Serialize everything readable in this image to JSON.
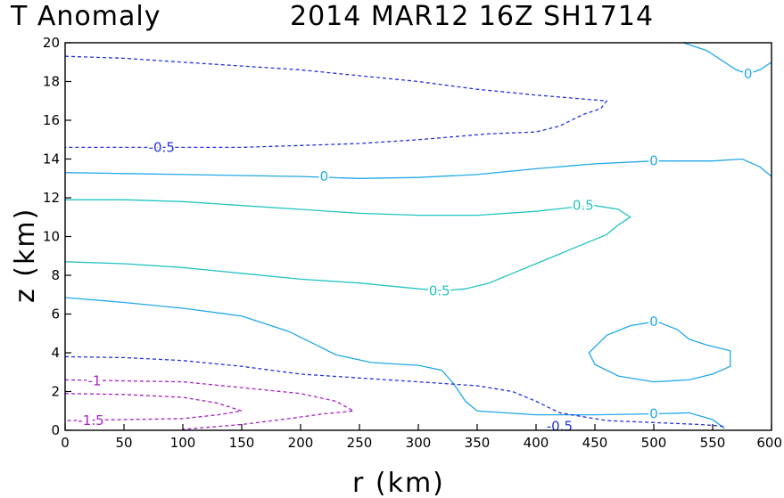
{
  "chart_data": {
    "type": "contour",
    "title_left": "T Anomaly",
    "title_right": "2014 MAR12 16Z   SH1714",
    "xlabel": "r (km)",
    "ylabel": "z (km)",
    "xlim": [
      0,
      600
    ],
    "ylim": [
      0,
      20
    ],
    "xticks": [
      "0",
      "50",
      "100",
      "150",
      "200",
      "250",
      "300",
      "350",
      "400",
      "450",
      "500",
      "550",
      "600"
    ],
    "yticks": [
      "0",
      "2",
      "4",
      "6",
      "8",
      "10",
      "12",
      "14",
      "16",
      "18",
      "20"
    ],
    "colors": {
      "neg_half": "#2233dd",
      "zero": "#22a8e8",
      "pos_half": "#22c4c0",
      "neg_strong": "#a822c8"
    },
    "contours": [
      {
        "level": -0.5,
        "style": "dashed",
        "color": "neg_half",
        "points": [
          [
            0,
            19.3
          ],
          [
            50,
            19.2
          ],
          [
            100,
            19.0
          ],
          [
            150,
            18.8
          ],
          [
            200,
            18.6
          ],
          [
            250,
            18.3
          ],
          [
            300,
            18.0
          ],
          [
            350,
            17.6
          ],
          [
            400,
            17.3
          ],
          [
            440,
            17.1
          ],
          [
            460,
            17.0
          ],
          [
            455,
            16.6
          ],
          [
            440,
            16.3
          ],
          [
            420,
            15.7
          ],
          [
            400,
            15.4
          ],
          [
            360,
            15.3
          ],
          [
            300,
            15.0
          ],
          [
            250,
            14.8
          ],
          [
            200,
            14.7
          ],
          [
            150,
            14.6
          ],
          [
            100,
            14.6
          ],
          [
            50,
            14.6
          ],
          [
            0,
            14.6
          ]
        ]
      },
      {
        "level": 0,
        "style": "solid",
        "color": "zero",
        "points": [
          [
            0,
            13.3
          ],
          [
            50,
            13.25
          ],
          [
            100,
            13.2
          ],
          [
            150,
            13.15
          ],
          [
            200,
            13.1
          ],
          [
            250,
            13.0
          ],
          [
            300,
            13.05
          ],
          [
            350,
            13.2
          ],
          [
            400,
            13.5
          ],
          [
            450,
            13.75
          ],
          [
            500,
            13.9
          ],
          [
            550,
            13.9
          ],
          [
            575,
            14.0
          ],
          [
            590,
            13.6
          ],
          [
            600,
            13.1
          ]
        ]
      },
      {
        "level": 0,
        "style": "solid",
        "color": "zero",
        "points": [
          [
            525,
            20.0
          ],
          [
            545,
            19.6
          ],
          [
            570,
            18.6
          ],
          [
            580,
            18.4
          ],
          [
            590,
            18.6
          ],
          [
            600,
            19.0
          ]
        ]
      },
      {
        "level": 0.5,
        "style": "solid",
        "color": "pos_half",
        "points": [
          [
            0,
            11.9
          ],
          [
            50,
            11.9
          ],
          [
            100,
            11.8
          ],
          [
            150,
            11.6
          ],
          [
            200,
            11.4
          ],
          [
            250,
            11.2
          ],
          [
            300,
            11.1
          ],
          [
            350,
            11.1
          ],
          [
            400,
            11.3
          ],
          [
            430,
            11.5
          ],
          [
            450,
            11.6
          ],
          [
            470,
            11.4
          ],
          [
            480,
            11.0
          ],
          [
            470,
            10.6
          ],
          [
            460,
            10.1
          ],
          [
            440,
            9.6
          ],
          [
            420,
            9.1
          ],
          [
            400,
            8.6
          ],
          [
            380,
            8.1
          ],
          [
            360,
            7.6
          ],
          [
            340,
            7.3
          ],
          [
            320,
            7.2
          ],
          [
            300,
            7.3
          ],
          [
            250,
            7.6
          ],
          [
            200,
            7.8
          ],
          [
            150,
            8.1
          ],
          [
            100,
            8.4
          ],
          [
            50,
            8.6
          ],
          [
            0,
            8.7
          ]
        ]
      },
      {
        "level": 0,
        "style": "solid",
        "color": "zero",
        "points": [
          [
            0,
            6.85
          ],
          [
            50,
            6.6
          ],
          [
            100,
            6.3
          ],
          [
            150,
            5.9
          ],
          [
            190,
            5.1
          ],
          [
            210,
            4.5
          ],
          [
            230,
            3.9
          ],
          [
            260,
            3.5
          ],
          [
            300,
            3.35
          ],
          [
            320,
            3.1
          ],
          [
            330,
            2.4
          ],
          [
            340,
            1.5
          ],
          [
            350,
            1.0
          ],
          [
            400,
            0.8
          ],
          [
            450,
            0.8
          ],
          [
            500,
            0.85
          ],
          [
            530,
            0.9
          ],
          [
            550,
            0.55
          ],
          [
            560,
            0.1
          ]
        ]
      },
      {
        "level": 0,
        "style": "solid",
        "color": "zero",
        "points": [
          [
            500,
            5.6
          ],
          [
            480,
            5.4
          ],
          [
            460,
            4.9
          ],
          [
            445,
            4.0
          ],
          [
            450,
            3.4
          ],
          [
            470,
            2.8
          ],
          [
            500,
            2.5
          ],
          [
            530,
            2.6
          ],
          [
            550,
            2.9
          ],
          [
            565,
            3.3
          ],
          [
            565,
            4.1
          ],
          [
            545,
            4.4
          ],
          [
            530,
            4.7
          ],
          [
            520,
            5.2
          ],
          [
            505,
            5.55
          ],
          [
            500,
            5.6
          ]
        ]
      },
      {
        "level": -0.5,
        "style": "dashed",
        "color": "neg_half",
        "points": [
          [
            0,
            3.8
          ],
          [
            50,
            3.75
          ],
          [
            100,
            3.6
          ],
          [
            150,
            3.3
          ],
          [
            200,
            2.9
          ],
          [
            250,
            2.7
          ],
          [
            300,
            2.5
          ],
          [
            350,
            2.3
          ],
          [
            380,
            2.0
          ],
          [
            400,
            1.5
          ],
          [
            420,
            0.9
          ],
          [
            460,
            0.5
          ],
          [
            500,
            0.4
          ],
          [
            540,
            0.3
          ],
          [
            560,
            0.2
          ]
        ]
      },
      {
        "level": -1,
        "style": "dashed",
        "color": "neg_strong",
        "points": [
          [
            0,
            2.6
          ],
          [
            50,
            2.55
          ],
          [
            100,
            2.5
          ],
          [
            150,
            2.2
          ],
          [
            200,
            1.9
          ],
          [
            230,
            1.5
          ],
          [
            245,
            1.0
          ],
          [
            220,
            0.85
          ],
          [
            190,
            0.6
          ],
          [
            150,
            0.3
          ],
          [
            100,
            0.05
          ]
        ]
      },
      {
        "level": -1.5,
        "style": "dashed",
        "color": "neg_strong",
        "points": [
          [
            0,
            1.9
          ],
          [
            50,
            1.85
          ],
          [
            100,
            1.7
          ],
          [
            130,
            1.4
          ],
          [
            150,
            1.0
          ],
          [
            130,
            0.8
          ],
          [
            100,
            0.6
          ],
          [
            50,
            0.55
          ],
          [
            0,
            0.5
          ]
        ]
      }
    ],
    "labels": [
      {
        "text": "-0.5",
        "r": 420,
        "z": 0.2,
        "color": "neg_half"
      },
      {
        "text": "0",
        "r": 580,
        "z": 18.4,
        "color": "zero"
      },
      {
        "text": "-0.5",
        "r": 82,
        "z": 14.6,
        "color": "neg_half"
      },
      {
        "text": "0",
        "r": 220,
        "z": 13.1,
        "color": "zero"
      },
      {
        "text": "0",
        "r": 500,
        "z": 13.9,
        "color": "zero"
      },
      {
        "text": "0.5",
        "r": 440,
        "z": 11.6,
        "color": "pos_half"
      },
      {
        "text": "0.5",
        "r": 318,
        "z": 7.2,
        "color": "pos_half"
      },
      {
        "text": "0",
        "r": 500,
        "z": 5.6,
        "color": "zero"
      },
      {
        "text": "-1",
        "r": 25,
        "z": 2.55,
        "color": "neg_strong"
      },
      {
        "text": "-1.5",
        "r": 22,
        "z": 0.5,
        "color": "neg_strong"
      },
      {
        "text": "0",
        "r": 500,
        "z": 0.85,
        "color": "zero"
      }
    ]
  }
}
